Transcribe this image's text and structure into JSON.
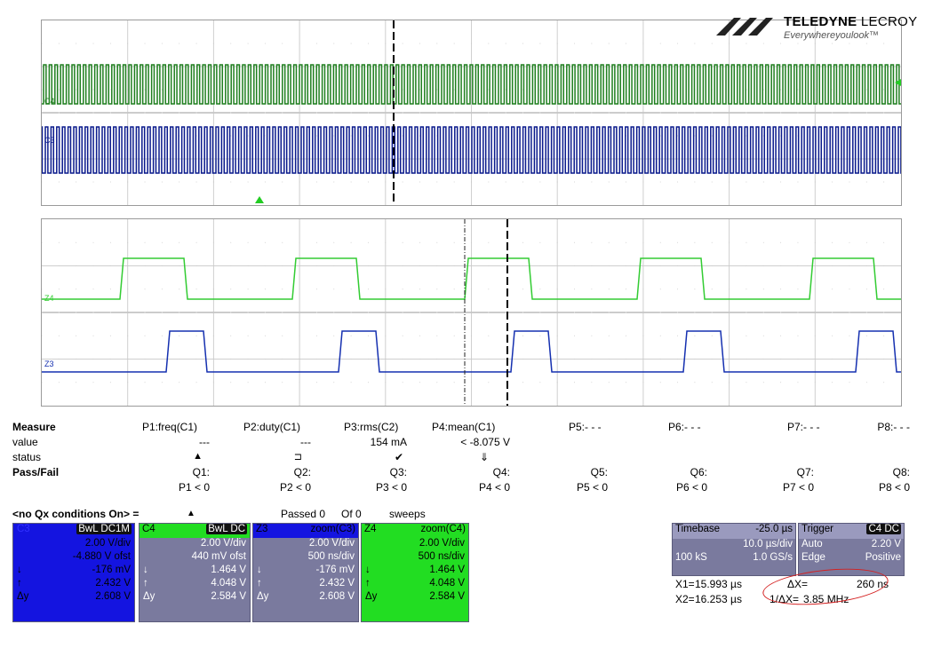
{
  "brand": {
    "name_bold": "TELEDYNE",
    "name_rest": " LECROY",
    "tagline": "Everywhereyoulook™"
  },
  "traces": {
    "c4_label": "C4",
    "c3_label": "C3",
    "z4_label": "Z4",
    "z3_label": "Z3",
    "c4_color": "#1f7f1f",
    "c3_color": "#0a1a8c",
    "z4_color": "#33cc33",
    "z3_color": "#1530b0"
  },
  "measure": {
    "header_label": "Measure",
    "value_label": "value",
    "status_label": "status",
    "passfail_label": "Pass/Fail",
    "params": [
      {
        "name": "P1:freq(C1)",
        "value": "---",
        "status_icon": "warning-icon",
        "q": "Q1:",
        "cond": "P1 < 0"
      },
      {
        "name": "P2:duty(C1)",
        "value": "---",
        "status_icon": "pulse-icon",
        "q": "Q2:",
        "cond": "P2 < 0"
      },
      {
        "name": "P3:rms(C2)",
        "value": "154 mA",
        "status_icon": "check-icon",
        "q": "Q3:",
        "cond": "P3 < 0"
      },
      {
        "name": "P4:mean(C1)",
        "value": "< -8.075 V",
        "status_icon": "down-arrow-icon",
        "q": "Q4:",
        "cond": "P4 < 0"
      },
      {
        "name": "P5:- - -",
        "value": "",
        "q": "Q5:",
        "cond": "P5 < 0"
      },
      {
        "name": "P6:- - -",
        "value": "",
        "q": "Q6:",
        "cond": "P6 < 0"
      },
      {
        "name": "P7:- - -",
        "value": "",
        "q": "Q7:",
        "cond": "P7 < 0"
      },
      {
        "name": "P8:- - -",
        "value": "",
        "q": "Q8:",
        "cond": "P8 < 0"
      }
    ],
    "status_symbols": [
      "▲",
      "⊐",
      "✔",
      "⇓"
    ]
  },
  "qx": {
    "label": "<no Qx conditions On> =",
    "symbol": "▲",
    "passed": "Passed 0",
    "of": "Of 0",
    "sweeps": "sweeps"
  },
  "channels": {
    "c3": {
      "name": "C3",
      "tag": "BwL DC1M",
      "vdiv": "2.00 V/div",
      "ofst": "-4.880 V ofst",
      "down": "-176 mV",
      "up": "2.432 V",
      "dy": "2.608 V",
      "color": "#1414e0"
    },
    "c4": {
      "name": "C4",
      "tag": "BwL DC",
      "vdiv": "2.00 V/div",
      "ofst": "440 mV ofst",
      "down": "1.464 V",
      "up": "4.048 V",
      "dy": "2.584 V"
    },
    "z3": {
      "name": "Z3",
      "tag": "zoom(C3)",
      "vdiv": "2.00 V/div",
      "ofst": "500 ns/div",
      "down": "-176 mV",
      "up": "2.432 V",
      "dy": "2.608 V"
    },
    "z4": {
      "name": "Z4",
      "tag": "zoom(C4)",
      "vdiv": "2.00 V/div",
      "ofst": "500 ns/div",
      "down": "1.464 V",
      "up": "4.048 V",
      "dy": "2.584 V",
      "color": "#22dd22"
    },
    "down_sym": "↓",
    "up_sym": "↑",
    "dy_sym": "Δy"
  },
  "timebase": {
    "label": "Timebase",
    "delay": "-25.0 µs",
    "tdiv": "10.0 µs/div",
    "samples": "100 kS",
    "rate": "1.0 GS/s"
  },
  "trigger": {
    "label": "Trigger",
    "tag": "C4 DC",
    "mode": "Auto",
    "level": "2.20 V",
    "type": "Edge",
    "slope": "Positive"
  },
  "cursors": {
    "x1_label": "X1=",
    "x1": "15.993 µs",
    "x2_label": "X2=",
    "x2": "16.253 µs",
    "dx_label": "ΔX=",
    "dx": "260 ns",
    "inv_dx_label": "1/ΔX=",
    "inv_dx": "3.85 MHz"
  }
}
